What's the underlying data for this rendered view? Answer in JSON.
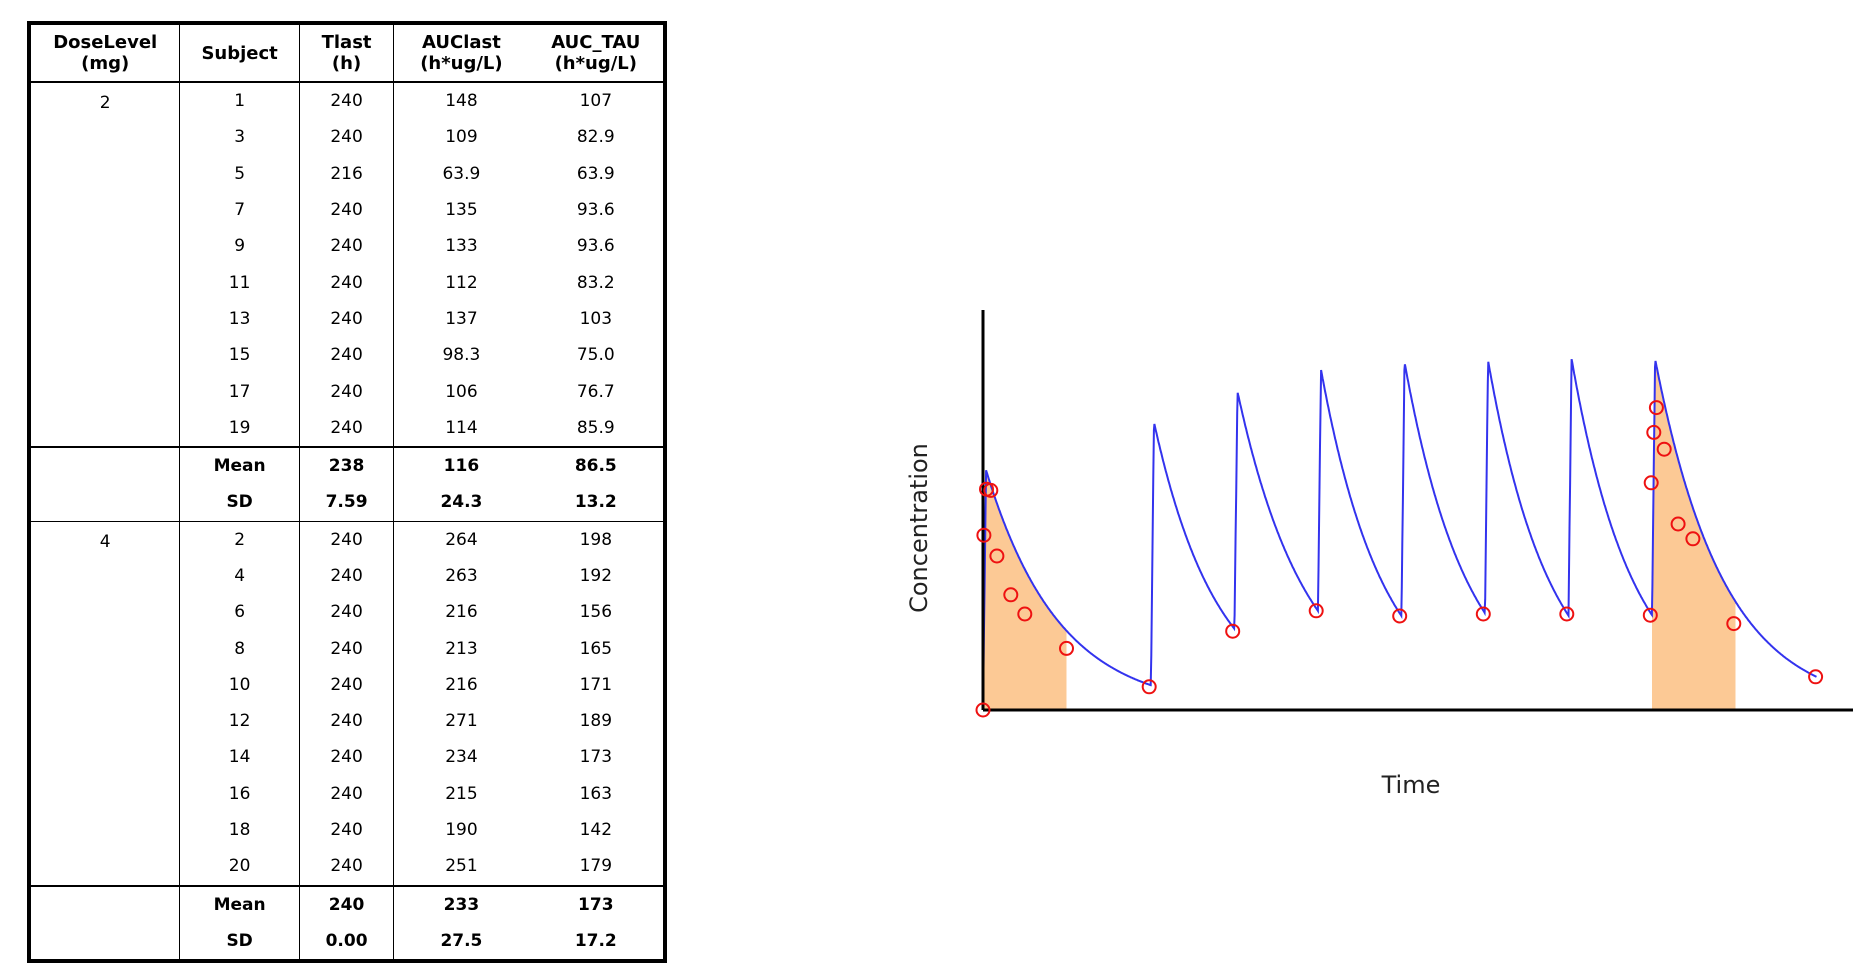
{
  "table": {
    "headers": {
      "dose": [
        "DoseLevel",
        "(mg)"
      ],
      "subject": "Subject",
      "tlast": [
        "Tlast",
        "(h)"
      ],
      "auclast": [
        "AUClast",
        "(h*ug/L)"
      ],
      "auctau": [
        "AUC_TAU",
        "(h*ug/L)"
      ]
    },
    "groups": [
      {
        "dose": "2",
        "rows": [
          {
            "subject": "1",
            "tlast": "240",
            "auclast": "148",
            "auctau": "107"
          },
          {
            "subject": "3",
            "tlast": "240",
            "auclast": "109",
            "auctau": "82.9"
          },
          {
            "subject": "5",
            "tlast": "216",
            "auclast": "63.9",
            "auctau": "63.9"
          },
          {
            "subject": "7",
            "tlast": "240",
            "auclast": "135",
            "auctau": "93.6"
          },
          {
            "subject": "9",
            "tlast": "240",
            "auclast": "133",
            "auctau": "93.6"
          },
          {
            "subject": "11",
            "tlast": "240",
            "auclast": "112",
            "auctau": "83.2"
          },
          {
            "subject": "13",
            "tlast": "240",
            "auclast": "137",
            "auctau": "103"
          },
          {
            "subject": "15",
            "tlast": "240",
            "auclast": "98.3",
            "auctau": "75.0"
          },
          {
            "subject": "17",
            "tlast": "240",
            "auclast": "106",
            "auctau": "76.7"
          },
          {
            "subject": "19",
            "tlast": "240",
            "auclast": "114",
            "auctau": "85.9"
          }
        ],
        "mean": {
          "label": "Mean",
          "tlast": "238",
          "auclast": "116",
          "auctau": "86.5"
        },
        "sd": {
          "label": "SD",
          "tlast": "7.59",
          "auclast": "24.3",
          "auctau": "13.2"
        }
      },
      {
        "dose": "4",
        "rows": [
          {
            "subject": "2",
            "tlast": "240",
            "auclast": "264",
            "auctau": "198"
          },
          {
            "subject": "4",
            "tlast": "240",
            "auclast": "263",
            "auctau": "192"
          },
          {
            "subject": "6",
            "tlast": "240",
            "auclast": "216",
            "auctau": "156"
          },
          {
            "subject": "8",
            "tlast": "240",
            "auclast": "213",
            "auctau": "165"
          },
          {
            "subject": "10",
            "tlast": "240",
            "auclast": "216",
            "auctau": "171"
          },
          {
            "subject": "12",
            "tlast": "240",
            "auclast": "271",
            "auctau": "189"
          },
          {
            "subject": "14",
            "tlast": "240",
            "auclast": "234",
            "auctau": "173"
          },
          {
            "subject": "16",
            "tlast": "240",
            "auclast": "215",
            "auctau": "163"
          },
          {
            "subject": "18",
            "tlast": "240",
            "auclast": "190",
            "auctau": "142"
          },
          {
            "subject": "20",
            "tlast": "240",
            "auclast": "251",
            "auctau": "179"
          }
        ],
        "mean": {
          "label": "Mean",
          "tlast": "240",
          "auclast": "233",
          "auctau": "173"
        },
        "sd": {
          "label": "SD",
          "tlast": "0.00",
          "auclast": "27.5",
          "auctau": "17.2"
        }
      }
    ]
  },
  "chart_data": {
    "type": "line",
    "xlabel": "Time",
    "ylabel": "Concentration",
    "xlim": [
      0,
      1
    ],
    "ylim": [
      0,
      1
    ],
    "grid": false,
    "colors": {
      "curve": "#3333ee",
      "points": "#ee1111",
      "shade": "#fcc995",
      "axis": "#000000"
    },
    "doses": [
      {
        "t0": 0.0,
        "base": 0.0,
        "peak": 0.6
      },
      {
        "t0": 0.193,
        "base": 0.062,
        "peak": 0.72
      },
      {
        "t0": 0.289,
        "base": 0.203,
        "peak": 0.796
      },
      {
        "t0": 0.385,
        "base": 0.248,
        "peak": 0.851
      },
      {
        "t0": 0.481,
        "base": 0.235,
        "peak": 0.87
      },
      {
        "t0": 0.577,
        "base": 0.242,
        "peak": 0.874
      },
      {
        "t0": 0.673,
        "base": 0.236,
        "peak": 0.878
      },
      {
        "t0": 0.769,
        "base": 0.237,
        "peak": 0.878
      }
    ],
    "end_time": 0.958,
    "end_value": 0.083,
    "shaded_intervals": [
      [
        0.0,
        0.096
      ],
      [
        0.769,
        0.865
      ]
    ],
    "observations": [
      {
        "x": 0.0,
        "y": 0.0
      },
      {
        "x": 0.001,
        "y": 0.437
      },
      {
        "x": 0.004,
        "y": 0.552
      },
      {
        "x": 0.009,
        "y": 0.549
      },
      {
        "x": 0.016,
        "y": 0.385
      },
      {
        "x": 0.032,
        "y": 0.288
      },
      {
        "x": 0.048,
        "y": 0.24
      },
      {
        "x": 0.096,
        "y": 0.154
      },
      {
        "x": 0.191,
        "y": 0.058
      },
      {
        "x": 0.287,
        "y": 0.197
      },
      {
        "x": 0.383,
        "y": 0.248
      },
      {
        "x": 0.479,
        "y": 0.235
      },
      {
        "x": 0.575,
        "y": 0.24
      },
      {
        "x": 0.671,
        "y": 0.24
      },
      {
        "x": 0.767,
        "y": 0.237
      },
      {
        "x": 0.768,
        "y": 0.568
      },
      {
        "x": 0.771,
        "y": 0.694
      },
      {
        "x": 0.774,
        "y": 0.756
      },
      {
        "x": 0.783,
        "y": 0.652
      },
      {
        "x": 0.799,
        "y": 0.465
      },
      {
        "x": 0.816,
        "y": 0.428
      },
      {
        "x": 0.863,
        "y": 0.216
      },
      {
        "x": 0.957,
        "y": 0.083
      }
    ]
  }
}
